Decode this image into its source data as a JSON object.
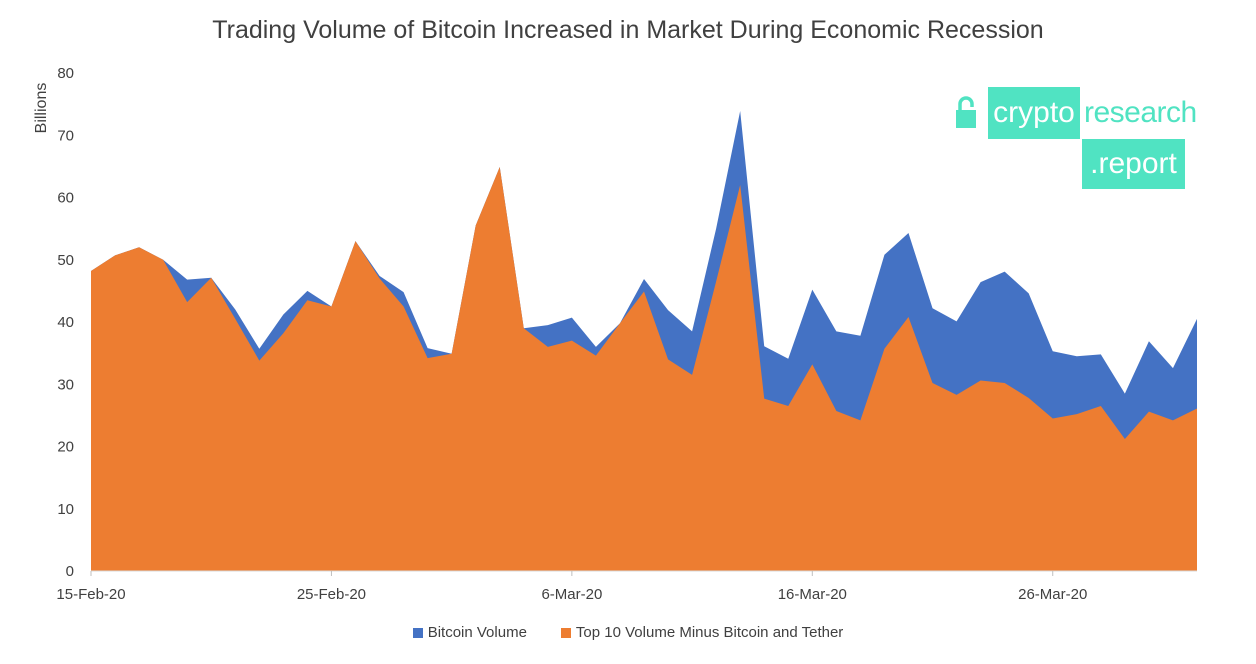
{
  "chart_data": {
    "type": "area",
    "title": "Trading Volume of Bitcoin Increased in Market During Economic Recession",
    "ylabel": "Billions",
    "xlabel": "",
    "ylim": [
      0,
      80
    ],
    "yticks": [
      0,
      10,
      20,
      30,
      40,
      50,
      60,
      70,
      80
    ],
    "x_start": "15-Feb-20",
    "x_tick_labels": [
      "15-Feb-20",
      "25-Feb-20",
      "6-Mar-20",
      "16-Mar-20",
      "26-Mar-20"
    ],
    "x_tick_index": [
      0,
      10,
      20,
      30,
      40
    ],
    "stacked": true,
    "series": [
      {
        "name": "Top 10 Volume Minus Bitcoin and Tether",
        "color": "#ed7d31",
        "values": [
          48.2,
          50.7,
          52.0,
          50.0,
          43.2,
          47.1,
          40.5,
          33.8,
          38.2,
          43.5,
          42.5,
          53.0,
          47.0,
          42.5,
          34.2,
          34.9,
          55.5,
          64.9,
          39.0,
          36.0,
          37.0,
          34.6,
          39.8,
          44.9,
          34.0,
          31.5,
          46.5,
          62.0,
          27.7,
          26.5,
          33.2,
          25.7,
          24.2,
          35.7,
          40.8,
          30.2,
          28.3,
          30.6,
          30.2,
          27.8,
          24.5,
          25.2,
          26.5,
          21.2,
          25.6,
          24.2,
          26.1
        ]
      },
      {
        "name": "Bitcoin Volume",
        "color": "#4472c4",
        "values": [
          0,
          0,
          0,
          0,
          3.6,
          0,
          1.5,
          1.9,
          3.0,
          1.5,
          0,
          0,
          0.4,
          2.3,
          1.6,
          0,
          0,
          0,
          0,
          3.5,
          3.7,
          1.4,
          0,
          2.0,
          7.9,
          7.0,
          8.5,
          11.9,
          8.4,
          7.6,
          12.0,
          12.8,
          13.6,
          15.1,
          13.5,
          12.0,
          11.8,
          15.8,
          17.9,
          16.8,
          10.8,
          9.3,
          8.3,
          7.3,
          11.3,
          8.4,
          14.4
        ]
      }
    ]
  },
  "legend": {
    "bitcoin_label": "Bitcoin Volume",
    "top10_label": "Top 10 Volume Minus Bitcoin and Tether"
  },
  "logo": {
    "word1": "crypto",
    "word2": "research",
    "word3": ".report",
    "icon": "lock-icon",
    "color": "#50e3c2"
  }
}
